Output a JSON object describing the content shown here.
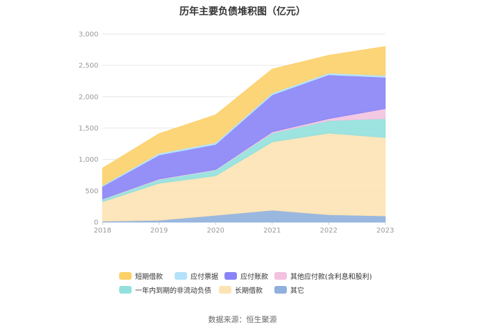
{
  "chart_data": {
    "type": "area",
    "stacked": true,
    "title": "历年主要负债堆积图（亿元）",
    "x": [
      "2018",
      "2019",
      "2020",
      "2021",
      "2022",
      "2023"
    ],
    "ylim": [
      0,
      3000
    ],
    "yticks": [
      "0",
      "500",
      "1,000",
      "1,500",
      "2,000",
      "2,500",
      "3,000"
    ],
    "grid": true,
    "legend_position": "bottom",
    "series": [
      {
        "name": "其它",
        "color": "#8fb0dc",
        "values": [
          15,
          30,
          110,
          190,
          120,
          100
        ]
      },
      {
        "name": "长期借款",
        "color": "#fde3b4",
        "values": [
          310,
          590,
          630,
          1090,
          1300,
          1250
        ]
      },
      {
        "name": "一年内到期的非流动负债",
        "color": "#92e0dd",
        "values": [
          40,
          60,
          90,
          140,
          200,
          300
        ]
      },
      {
        "name": "其他应付款(含利息和股利)",
        "color": "#f2c2e0",
        "values": [
          5,
          10,
          10,
          20,
          30,
          160
        ]
      },
      {
        "name": "应付账款",
        "color": "#8884f7",
        "values": [
          200,
          380,
          400,
          590,
          700,
          500
        ]
      },
      {
        "name": "应付票据",
        "color": "#b3e2fa",
        "values": [
          20,
          30,
          30,
          30,
          30,
          30
        ]
      },
      {
        "name": "短期借款",
        "color": "#fdd06a",
        "values": [
          270,
          310,
          440,
          380,
          280,
          460
        ]
      }
    ]
  },
  "legend_rows": [
    [
      "短期借款",
      "应付票据",
      "应付账款",
      "其他应付款(含利息和股利)"
    ],
    [
      "一年内到期的非流动负债",
      "长期借款",
      "其它"
    ]
  ],
  "source": "数据来源：恒生聚源"
}
